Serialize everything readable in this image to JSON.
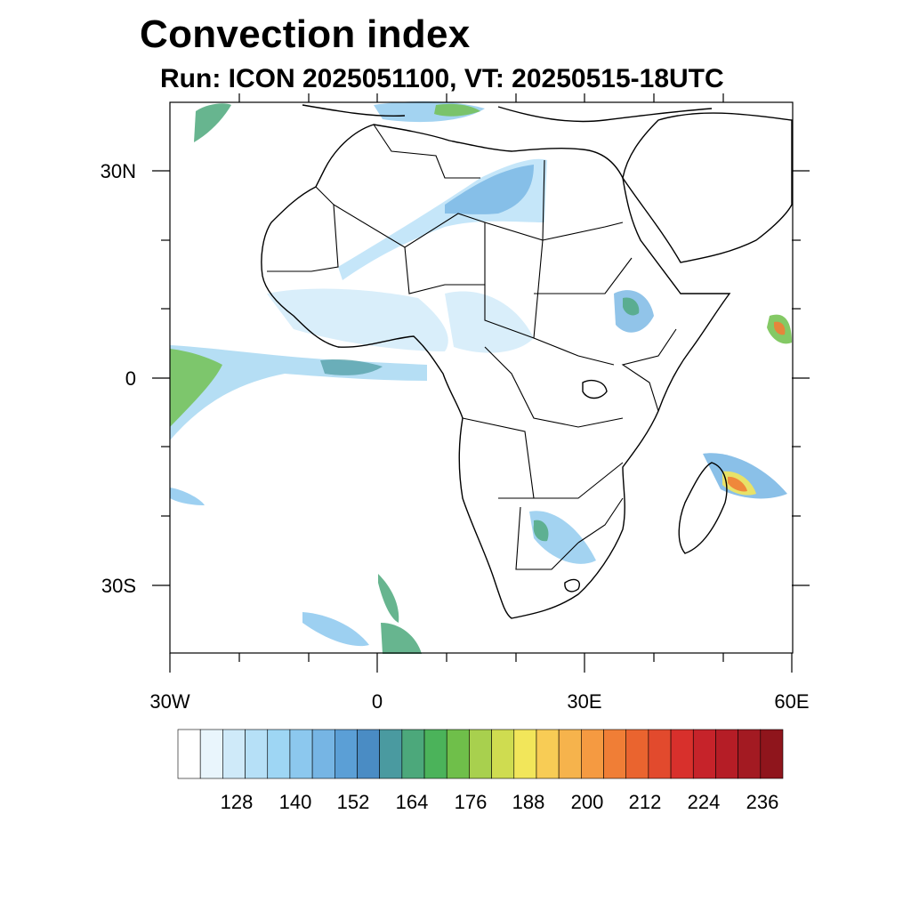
{
  "title": "Convection index",
  "subtitle": "Run: ICON 2025051100,  VT: 20250515-18UTC",
  "axes": {
    "lat_labels": [
      "30N",
      "0",
      "30S"
    ],
    "lon_labels": [
      "30W",
      "0",
      "30E",
      "60E"
    ]
  },
  "colorbar": {
    "labels": [
      "128",
      "140",
      "152",
      "164",
      "176",
      "188",
      "200",
      "212",
      "224",
      "236"
    ],
    "colors": [
      "#ffffff",
      "#e9f5fc",
      "#cfeaf9",
      "#b6e0f7",
      "#9ed6f4",
      "#8cc8ee",
      "#76b5e4",
      "#5b9fd6",
      "#4a8cc4",
      "#4a9aa0",
      "#4ca87b",
      "#4bb35a",
      "#6fbf4a",
      "#a8d04e",
      "#cfdc50",
      "#f2e65a",
      "#f8cc55",
      "#f6b34c",
      "#f59a41",
      "#f07e36",
      "#ea642f",
      "#e24a2d",
      "#d8302c",
      "#c6232a",
      "#b51d26",
      "#a31a22",
      "#8f151c"
    ]
  },
  "colors": {
    "border": "#000000",
    "frame": "#000000"
  }
}
